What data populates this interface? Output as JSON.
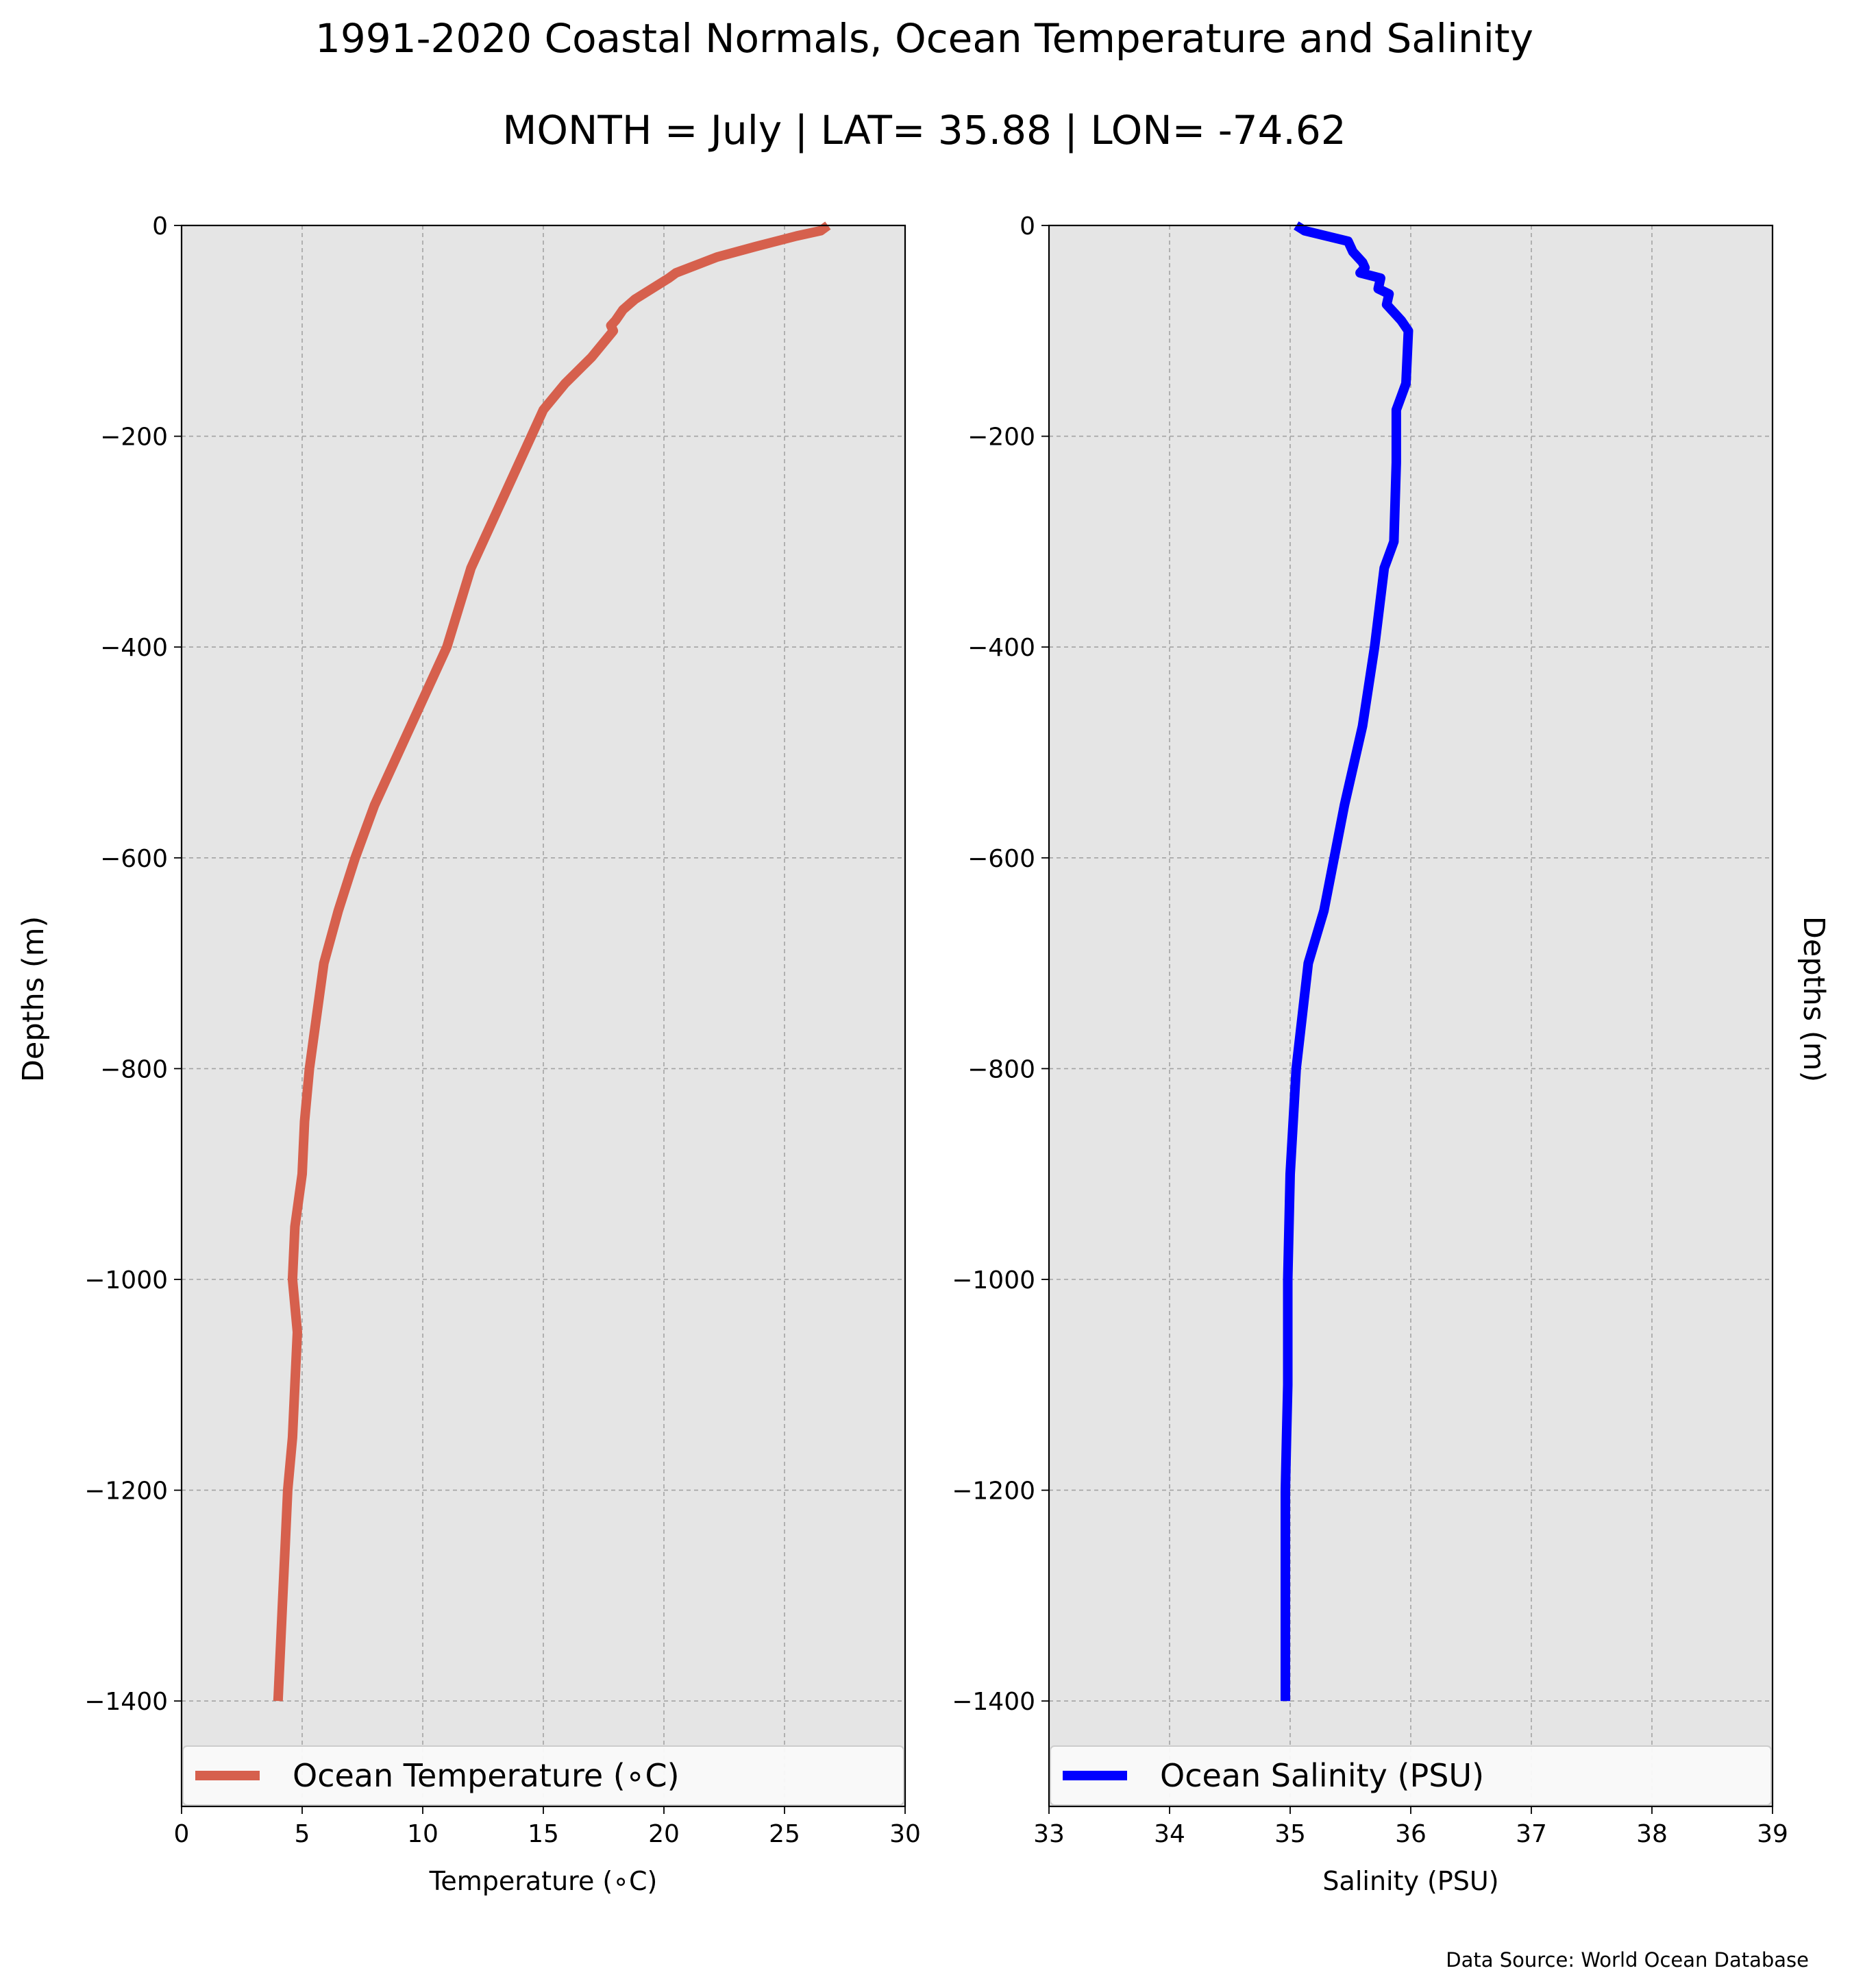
{
  "figure": {
    "title": "1991-2020 Coastal Normals, Ocean Temperature and Salinity",
    "subtitle": "MONTH = July | LAT= 35.88 | LON= -74.62",
    "source": "Data Source: World Ocean Database",
    "colors": {
      "axes_bg": "#e5e5e5",
      "grid": "#a3a3a3",
      "temperature": "#d6604d",
      "salinity": "#0000ff"
    }
  },
  "chart_data": [
    {
      "type": "line",
      "xlabel": "Temperature (∘C)",
      "ylabel": "Depths (m)",
      "xlim": [
        0,
        30
      ],
      "ylim": [
        -1500,
        0
      ],
      "xticks": [
        0,
        5,
        10,
        15,
        20,
        25,
        30
      ],
      "yticks": [
        0,
        -200,
        -400,
        -600,
        -800,
        -1000,
        -1200,
        -1400
      ],
      "grid": true,
      "legend_placement": "lower center",
      "series": [
        {
          "name": "Ocean Temperature (∘C)",
          "color": "#d6604d",
          "x": [
            26.8,
            26.5,
            25.5,
            23.8,
            22.2,
            20.5,
            20.2,
            19.5,
            18.8,
            18.3,
            18.0,
            17.8,
            17.9,
            17.0,
            15.9,
            15.0,
            14.0,
            13.0,
            12.0,
            11.0,
            10.0,
            9.0,
            8.0,
            7.2,
            6.5,
            5.9,
            5.6,
            5.3,
            5.1,
            5.0,
            4.7,
            4.6,
            4.8,
            4.7,
            4.6,
            4.4,
            4.3,
            4.2,
            4.1,
            4.0,
            4.0
          ],
          "y": [
            0,
            -5,
            -10,
            -20,
            -30,
            -45,
            -50,
            -60,
            -70,
            -80,
            -90,
            -95,
            -100,
            -125,
            -150,
            -175,
            -225,
            -275,
            -325,
            -400,
            -450,
            -500,
            -550,
            -600,
            -650,
            -700,
            -750,
            -800,
            -850,
            -900,
            -950,
            -1000,
            -1050,
            -1100,
            -1150,
            -1200,
            -1250,
            -1300,
            -1350,
            -1400,
            -1400
          ]
        }
      ]
    },
    {
      "type": "line",
      "xlabel": "Salinity (PSU)",
      "ylabel": "Depths (m)",
      "xlim": [
        33,
        39
      ],
      "ylim": [
        -1500,
        0
      ],
      "xticks": [
        33,
        34,
        35,
        36,
        37,
        38,
        39
      ],
      "yticks": [
        0,
        -200,
        -400,
        -600,
        -800,
        -1000,
        -1200,
        -1400
      ],
      "grid": true,
      "legend_placement": "lower center",
      "series": [
        {
          "name": "Ocean Salinity (PSU)",
          "color": "#0000ff",
          "x": [
            35.05,
            35.12,
            35.48,
            35.52,
            35.6,
            35.62,
            35.58,
            35.75,
            35.73,
            35.82,
            35.8,
            35.88,
            35.92,
            35.98,
            35.96,
            35.88,
            35.88,
            35.86,
            35.78,
            35.7,
            35.6,
            35.45,
            35.28,
            35.15,
            35.05,
            35.0,
            34.98,
            34.98,
            34.97,
            34.96,
            34.96,
            34.96
          ],
          "y": [
            0,
            -5,
            -15,
            -25,
            -35,
            -40,
            -45,
            -50,
            -60,
            -65,
            -75,
            -85,
            -90,
            -100,
            -150,
            -175,
            -225,
            -300,
            -325,
            -400,
            -475,
            -550,
            -650,
            -700,
            -800,
            -900,
            -1000,
            -1100,
            -1150,
            -1200,
            -1300,
            -1400
          ]
        }
      ]
    }
  ]
}
